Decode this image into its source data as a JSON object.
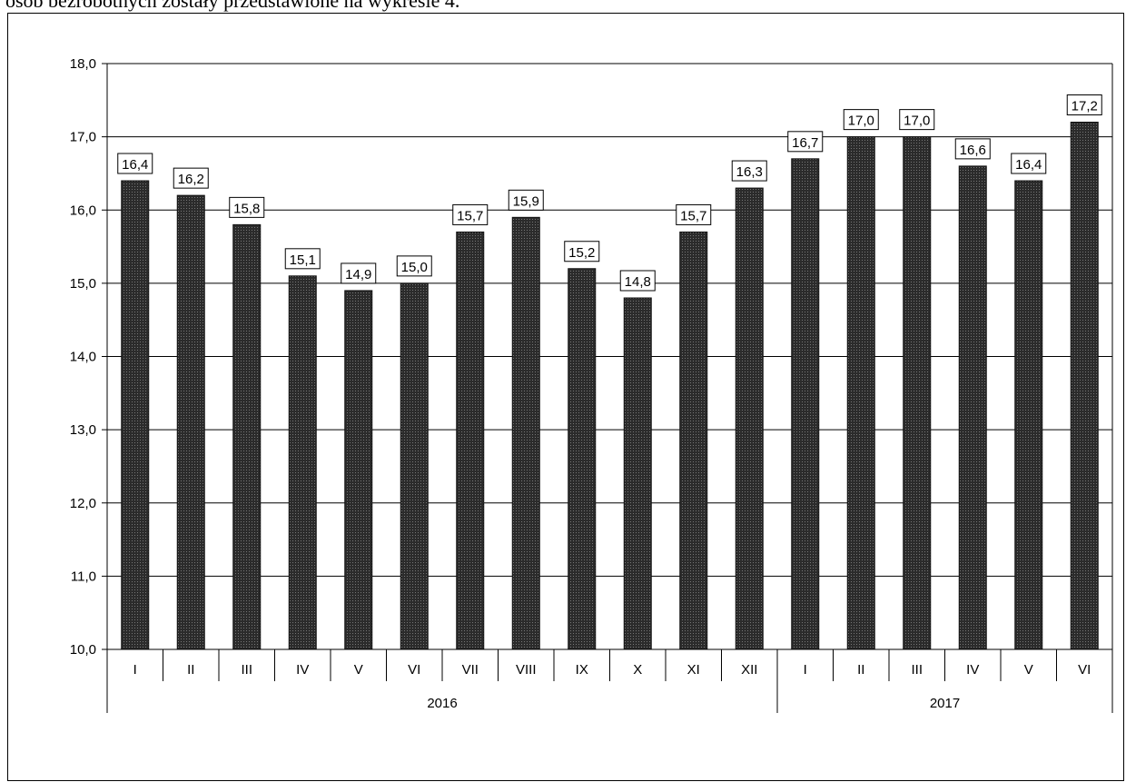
{
  "caption": "osób bezrobotnych zostały przedstawione na wykresie 4.",
  "chart_data": {
    "type": "bar",
    "title": "",
    "xlabel": "",
    "ylabel": "",
    "ylim": [
      10.0,
      18.0
    ],
    "yticks": [
      "10,0",
      "11,0",
      "12,0",
      "13,0",
      "14,0",
      "15,0",
      "16,0",
      "17,0",
      "18,0"
    ],
    "grid": true,
    "bar_color": "#3a3a3a",
    "categories": [
      "I",
      "II",
      "III",
      "IV",
      "V",
      "VI",
      "VII",
      "VIII",
      "IX",
      "X",
      "XI",
      "XII",
      "I",
      "II",
      "III",
      "IV",
      "V",
      "VI"
    ],
    "values": [
      16.4,
      16.2,
      15.8,
      15.1,
      14.9,
      15.0,
      15.7,
      15.9,
      15.2,
      14.8,
      15.7,
      16.3,
      16.7,
      17.0,
      17.0,
      16.6,
      16.4,
      17.2
    ],
    "value_labels": [
      "16,4",
      "16,2",
      "15,8",
      "15,1",
      "14,9",
      "15,0",
      "15,7",
      "15,9",
      "15,2",
      "14,8",
      "15,7",
      "16,3",
      "16,7",
      "17,0",
      "17,0",
      "16,6",
      "16,4",
      "17,2"
    ],
    "groups": [
      {
        "label": "2016",
        "count": 12
      },
      {
        "label": "2017",
        "count": 6
      }
    ]
  }
}
